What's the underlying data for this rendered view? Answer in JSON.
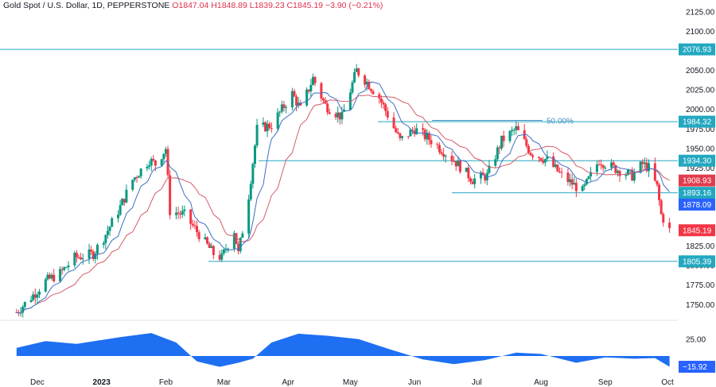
{
  "header": {
    "title": "Gold Spot / U.S. Dollar, 1D, PEPPERSTONE",
    "open": "O1847.04",
    "high": "H1848.89",
    "low": "L1839.23",
    "close": "C1845.19",
    "change": "−3.90 (−0.21%)"
  },
  "colors": {
    "up": "#089981",
    "down": "#f23645",
    "level_line": "#22a8c0",
    "ma_fast": "#3e6fc4",
    "ma_slow": "#d45b68",
    "osc": "#1e6ff2",
    "last_price_tag": "#f23645",
    "ma_fast_tag": "#2962ff",
    "ma_slow_tag": "#e23b4d",
    "level_tag": "#22a8c0"
  },
  "chart_data": {
    "type": "candlestick",
    "symbol": "Gold Spot / U.S. Dollar",
    "timeframe": "1D",
    "y_axis": {
      "ticks": [
        "2125.00",
        "2100.00",
        "2076.93",
        "2050.00",
        "2025.00",
        "2000.00",
        "1984.32",
        "1975.00",
        "1950.00",
        "1934.30",
        "1925.00",
        "1908.93",
        "1893.16",
        "1878.09",
        "1845.19",
        "1825.00",
        "1805.39",
        "1800.00",
        "1775.00",
        "1750.00"
      ],
      "range": [
        1735,
        2130
      ]
    },
    "x_axis": {
      "labels": [
        "Dec",
        "2023",
        "Feb",
        "Mar",
        "Apr",
        "May",
        "Jun",
        "Jul",
        "Aug",
        "Sep",
        "Oct"
      ]
    },
    "horizontal_levels": [
      {
        "value": 2076.93,
        "label": "2076.93"
      },
      {
        "value": 1984.32,
        "label": "1984.32"
      },
      {
        "value": 1934.3,
        "label": "1934.30"
      },
      {
        "value": 1893.16,
        "label": "1893.16"
      },
      {
        "value": 1805.39,
        "label": "1805.39"
      }
    ],
    "fib_label": "50.00%",
    "price_tags": [
      {
        "value": 1908.93,
        "label": "1908.93",
        "kind": "ma_slow"
      },
      {
        "value": 1878.09,
        "label": "1878.09",
        "kind": "ma_fast"
      },
      {
        "value": 1845.19,
        "label": "1845.19",
        "kind": "last"
      }
    ],
    "price_path": [
      {
        "d": "2022-11-21",
        "p": 1740
      },
      {
        "d": "2022-11-30",
        "p": 1765
      },
      {
        "d": "2022-12-05",
        "p": 1780
      },
      {
        "d": "2022-12-12",
        "p": 1790
      },
      {
        "d": "2022-12-19",
        "p": 1810
      },
      {
        "d": "2022-12-28",
        "p": 1815
      },
      {
        "d": "2023-01-03",
        "p": 1840
      },
      {
        "d": "2023-01-10",
        "p": 1875
      },
      {
        "d": "2023-01-16",
        "p": 1910
      },
      {
        "d": "2023-01-24",
        "p": 1935
      },
      {
        "d": "2023-01-27",
        "p": 1930
      },
      {
        "d": "2023-02-01",
        "p": 1950
      },
      {
        "d": "2023-02-03",
        "p": 1870
      },
      {
        "d": "2023-02-10",
        "p": 1865
      },
      {
        "d": "2023-02-17",
        "p": 1840
      },
      {
        "d": "2023-02-24",
        "p": 1815
      },
      {
        "d": "2023-02-28",
        "p": 1810
      },
      {
        "d": "2023-03-06",
        "p": 1845
      },
      {
        "d": "2023-03-08",
        "p": 1815
      },
      {
        "d": "2023-03-13",
        "p": 1890
      },
      {
        "d": "2023-03-17",
        "p": 1975
      },
      {
        "d": "2023-03-24",
        "p": 1980
      },
      {
        "d": "2023-04-03",
        "p": 2020
      },
      {
        "d": "2023-04-07",
        "p": 2000
      },
      {
        "d": "2023-04-13",
        "p": 2040
      },
      {
        "d": "2023-04-19",
        "p": 2005
      },
      {
        "d": "2023-04-27",
        "p": 1990
      },
      {
        "d": "2023-05-04",
        "p": 2050
      },
      {
        "d": "2023-05-09",
        "p": 2035
      },
      {
        "d": "2023-05-15",
        "p": 2015
      },
      {
        "d": "2023-05-25",
        "p": 1960
      },
      {
        "d": "2023-06-01",
        "p": 1975
      },
      {
        "d": "2023-06-09",
        "p": 1960
      },
      {
        "d": "2023-06-20",
        "p": 1935
      },
      {
        "d": "2023-06-29",
        "p": 1910
      },
      {
        "d": "2023-07-06",
        "p": 1915
      },
      {
        "d": "2023-07-13",
        "p": 1960
      },
      {
        "d": "2023-07-20",
        "p": 1975
      },
      {
        "d": "2023-07-27",
        "p": 1945
      },
      {
        "d": "2023-08-04",
        "p": 1935
      },
      {
        "d": "2023-08-11",
        "p": 1915
      },
      {
        "d": "2023-08-21",
        "p": 1895
      },
      {
        "d": "2023-08-29",
        "p": 1935
      },
      {
        "d": "2023-09-05",
        "p": 1925
      },
      {
        "d": "2023-09-14",
        "p": 1915
      },
      {
        "d": "2023-09-19",
        "p": 1930
      },
      {
        "d": "2023-09-22",
        "p": 1925
      },
      {
        "d": "2023-09-26",
        "p": 1900
      },
      {
        "d": "2023-09-28",
        "p": 1865
      },
      {
        "d": "2023-10-02",
        "p": 1845
      }
    ],
    "oscillator": {
      "y_ticks": [
        "25.00"
      ],
      "last_value_label": "−15.92",
      "path": [
        {
          "d": "2022-11-21",
          "v": 12
        },
        {
          "d": "2022-12-05",
          "v": 22
        },
        {
          "d": "2022-12-20",
          "v": 18
        },
        {
          "d": "2023-01-10",
          "v": 28
        },
        {
          "d": "2023-01-25",
          "v": 34
        },
        {
          "d": "2023-02-06",
          "v": 20
        },
        {
          "d": "2023-02-16",
          "v": -8
        },
        {
          "d": "2023-02-27",
          "v": -16
        },
        {
          "d": "2023-03-08",
          "v": -10
        },
        {
          "d": "2023-03-15",
          "v": -4
        },
        {
          "d": "2023-03-24",
          "v": 20
        },
        {
          "d": "2023-04-06",
          "v": 33
        },
        {
          "d": "2023-04-20",
          "v": 30
        },
        {
          "d": "2023-05-05",
          "v": 25
        },
        {
          "d": "2023-05-20",
          "v": 10
        },
        {
          "d": "2023-06-05",
          "v": -5
        },
        {
          "d": "2023-06-20",
          "v": -12
        },
        {
          "d": "2023-07-05",
          "v": -6
        },
        {
          "d": "2023-07-20",
          "v": 5
        },
        {
          "d": "2023-08-01",
          "v": 3
        },
        {
          "d": "2023-08-18",
          "v": -10
        },
        {
          "d": "2023-09-01",
          "v": -2
        },
        {
          "d": "2023-09-15",
          "v": -4
        },
        {
          "d": "2023-09-25",
          "v": -3
        },
        {
          "d": "2023-10-02",
          "v": -15.92
        }
      ]
    }
  }
}
